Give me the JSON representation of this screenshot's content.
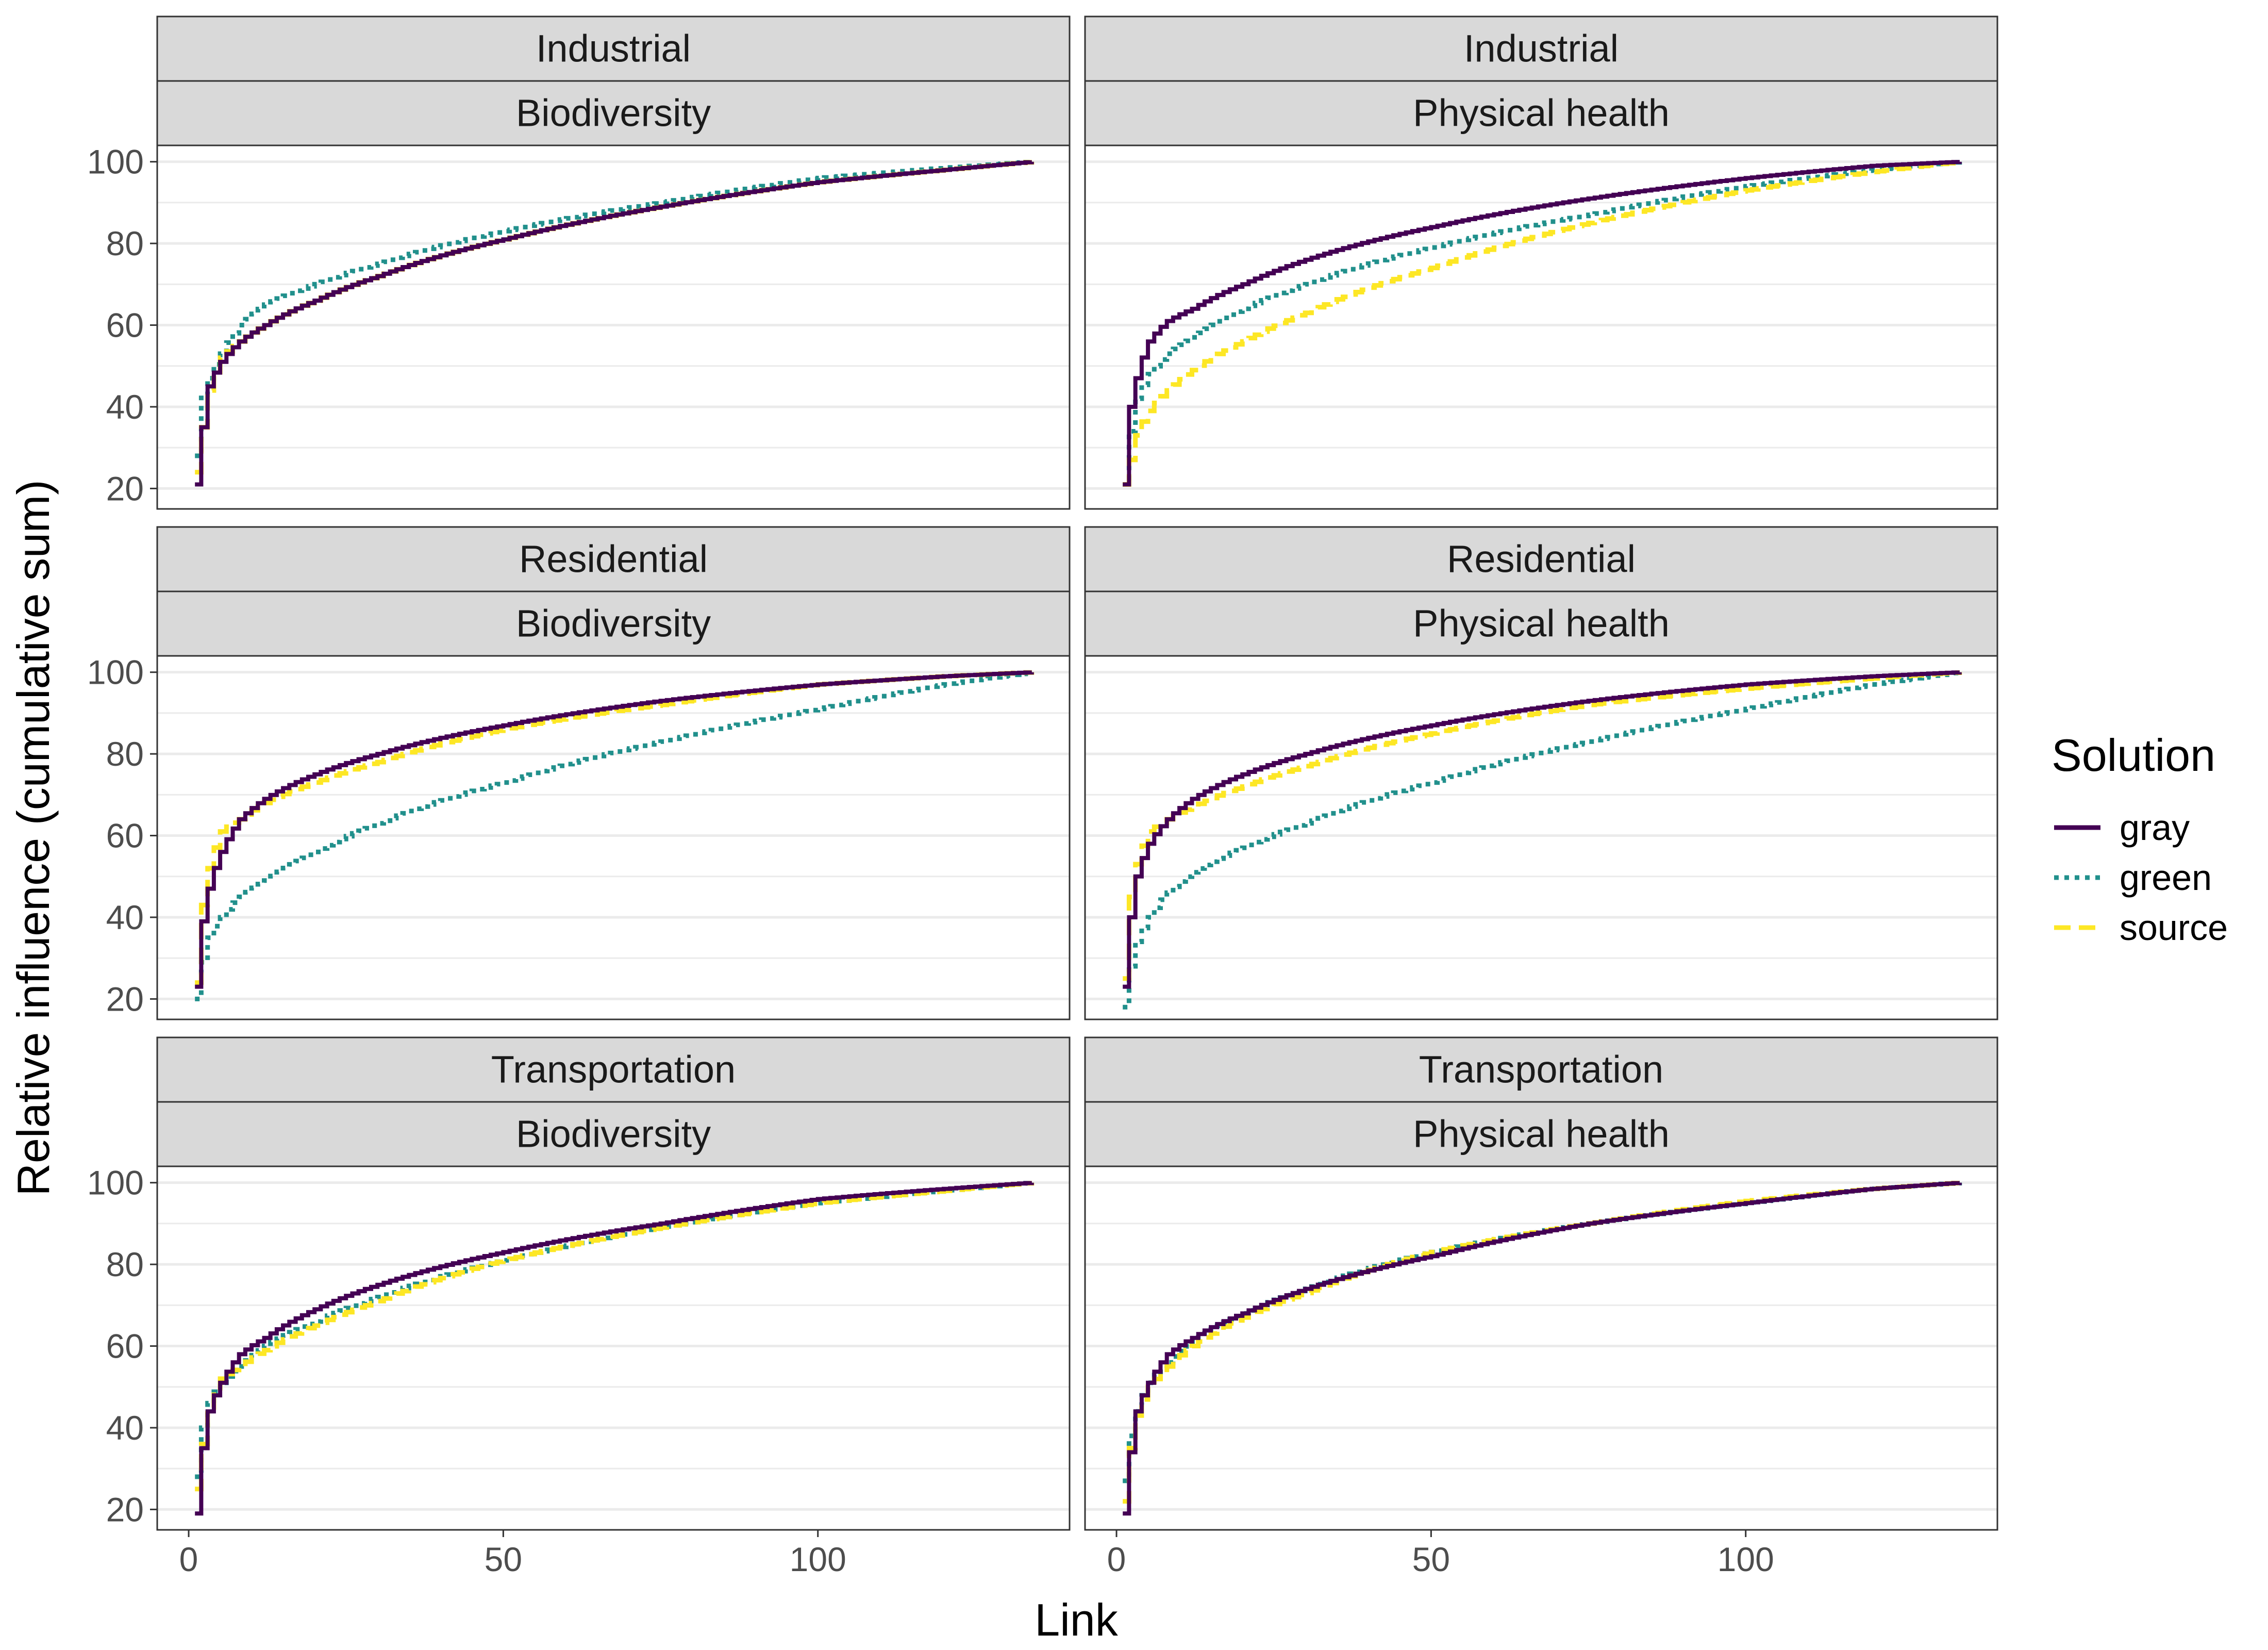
{
  "chart_data": {
    "type": "line",
    "xlabel": "Link",
    "ylabel": "Relative influence (cumulative sum)",
    "xlim": [
      -5,
      140
    ],
    "ylim": [
      15,
      104
    ],
    "x_ticks": [
      0,
      50,
      100
    ],
    "y_ticks": [
      20,
      40,
      60,
      80,
      100
    ],
    "grid": "horizontal major and minor",
    "legend": {
      "title": "Solution",
      "placement": "right",
      "entries": [
        {
          "name": "gray",
          "color": "#440154",
          "dash": "solid"
        },
        {
          "name": "green",
          "color": "#21908C",
          "dash": "dotted"
        },
        {
          "name": "source",
          "color": "#FDE725",
          "dash": "dashed"
        }
      ]
    },
    "n_links": 134,
    "panels": [
      {
        "strip_top": "Industrial",
        "strip_bottom": "Biodiversity",
        "series": [
          {
            "name": "gray",
            "x": [
              1,
              2,
              3,
              5,
              8,
              12,
              20,
              30,
              50,
              75,
              100,
              120,
              134
            ],
            "y": [
              21,
              35,
              45,
              51,
              56,
              60,
              66,
              72,
              81,
              89,
              95,
              98,
              100
            ]
          },
          {
            "name": "green",
            "x": [
              1,
              2,
              3,
              5,
              8,
              12,
              20,
              30,
              50,
              75,
              100,
              120,
              134
            ],
            "y": [
              28,
              43,
              47,
              53,
              60,
              65,
              70,
              75,
              83,
              90,
              96,
              98.5,
              100
            ]
          },
          {
            "name": "source",
            "x": [
              1,
              2,
              3,
              5,
              8,
              12,
              20,
              30,
              50,
              75,
              100,
              120,
              134
            ],
            "y": [
              24,
              35,
              44,
              52,
              56,
              60,
              66,
              72,
              81,
              89,
              95,
              98,
              100
            ]
          }
        ]
      },
      {
        "strip_top": "Industrial",
        "strip_bottom": "Physical health",
        "series": [
          {
            "name": "gray",
            "x": [
              1,
              2,
              3,
              5,
              8,
              12,
              20,
              30,
              50,
              75,
              100,
              120,
              134
            ],
            "y": [
              21,
              40,
              47,
              56,
              61,
              64,
              70,
              76,
              84,
              91,
              96,
              99,
              100
            ]
          },
          {
            "name": "green",
            "x": [
              1,
              2,
              3,
              5,
              8,
              12,
              20,
              30,
              50,
              75,
              100,
              120,
              134
            ],
            "y": [
              21,
              34,
              42,
              48,
              53,
              57,
              64,
              70,
              79,
              87,
              94,
              98,
              100
            ]
          },
          {
            "name": "source",
            "x": [
              1,
              2,
              3,
              5,
              8,
              12,
              20,
              30,
              50,
              75,
              100,
              120,
              134
            ],
            "y": [
              21,
              27,
              33,
              39,
              44,
              49,
              56,
              63,
              74,
              85,
              93,
              97.5,
              100
            ]
          }
        ]
      },
      {
        "strip_top": "Residential",
        "strip_bottom": "Biodiversity",
        "series": [
          {
            "name": "gray",
            "x": [
              1,
              2,
              3,
              5,
              8,
              12,
              20,
              30,
              50,
              75,
              100,
              120,
              134
            ],
            "y": [
              23,
              39,
              47,
              56,
              64,
              69,
              75,
              80,
              87,
              93,
              97,
              99,
              100
            ]
          },
          {
            "name": "green",
            "x": [
              1,
              2,
              3,
              5,
              8,
              12,
              20,
              30,
              50,
              75,
              100,
              120,
              134
            ],
            "y": [
              20,
              29,
              35,
              40,
              45,
              49,
              56,
              63,
              73,
              83,
              91,
              97,
              100
            ]
          },
          {
            "name": "source",
            "x": [
              1,
              2,
              3,
              5,
              8,
              12,
              20,
              30,
              50,
              75,
              100,
              120,
              134
            ],
            "y": [
              24,
              43,
              52,
              61,
              64,
              68,
              73,
              78,
              86,
              92,
              97,
              99,
              100
            ]
          }
        ]
      },
      {
        "strip_top": "Residential",
        "strip_bottom": "Physical health",
        "series": [
          {
            "name": "gray",
            "x": [
              1,
              2,
              3,
              5,
              8,
              12,
              20,
              30,
              50,
              75,
              100,
              120,
              134
            ],
            "y": [
              23,
              40,
              50,
              58,
              64,
              69,
              75,
              80,
              87,
              93,
              97,
              99,
              100
            ]
          },
          {
            "name": "green",
            "x": [
              1,
              2,
              3,
              5,
              8,
              12,
              20,
              30,
              50,
              75,
              100,
              120,
              134
            ],
            "y": [
              18,
              28,
              34,
              40,
              46,
              51,
              57,
              63,
              73,
              83,
              91,
              97,
              100
            ]
          },
          {
            "name": "source",
            "x": [
              1,
              2,
              3,
              5,
              8,
              12,
              20,
              30,
              50,
              75,
              100,
              120,
              134
            ],
            "y": [
              25,
              45,
              53,
              61,
              64,
              67,
              72,
              77,
              85,
              92,
              96,
              98.5,
              100
            ]
          }
        ]
      },
      {
        "strip_top": "Transportation",
        "strip_bottom": "Biodiversity",
        "series": [
          {
            "name": "gray",
            "x": [
              1,
              2,
              3,
              5,
              8,
              12,
              20,
              30,
              50,
              75,
              100,
              120,
              134
            ],
            "y": [
              19,
              35,
              44,
              51,
              58,
              62,
              69,
              75,
              83,
              90,
              96,
              98.5,
              100
            ]
          },
          {
            "name": "green",
            "x": [
              1,
              2,
              3,
              5,
              8,
              12,
              20,
              30,
              50,
              75,
              100,
              120,
              134
            ],
            "y": [
              28,
              40,
              46,
              51,
              55,
              60,
              66,
              72,
              81,
              89,
              95,
              98,
              100
            ]
          },
          {
            "name": "source",
            "x": [
              1,
              2,
              3,
              5,
              8,
              12,
              20,
              30,
              50,
              75,
              100,
              120,
              134
            ],
            "y": [
              25,
              36,
              45,
              52,
              55,
              59,
              65,
              71,
              81,
              89,
              95,
              98,
              100
            ]
          }
        ]
      },
      {
        "strip_top": "Transportation",
        "strip_bottom": "Physical health",
        "series": [
          {
            "name": "gray",
            "x": [
              1,
              2,
              3,
              5,
              8,
              12,
              20,
              30,
              50,
              75,
              100,
              120,
              134
            ],
            "y": [
              19,
              34,
              44,
              51,
              58,
              62,
              68,
              74,
              82,
              90,
              95,
              98.5,
              100
            ]
          },
          {
            "name": "green",
            "x": [
              1,
              2,
              3,
              5,
              8,
              12,
              20,
              30,
              50,
              75,
              100,
              120,
              134
            ],
            "y": [
              27,
              38,
              44,
              51,
              56,
              61,
              68,
              74,
              83,
              90,
              95,
              98.5,
              100
            ]
          },
          {
            "name": "source",
            "x": [
              1,
              2,
              3,
              5,
              8,
              12,
              20,
              30,
              50,
              75,
              100,
              120,
              134
            ],
            "y": [
              22,
              35,
              43,
              50,
              55,
              60,
              67,
              73,
              83,
              90,
              95.5,
              98.5,
              100
            ]
          }
        ]
      }
    ]
  }
}
